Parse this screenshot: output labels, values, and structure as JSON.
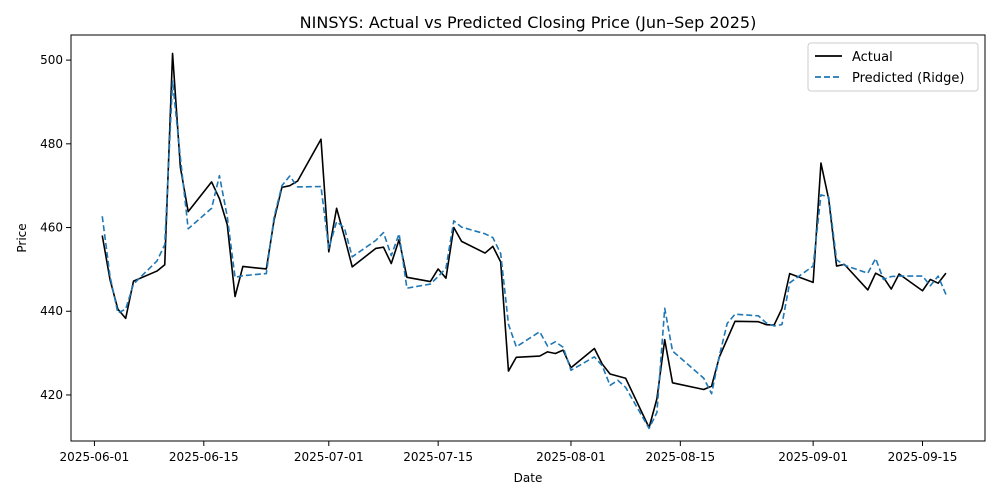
{
  "chart_data": {
    "type": "line",
    "title": "NINSYS: Actual vs Predicted Closing Price (Jun–Sep 2025)",
    "xlabel": "Date",
    "ylabel": "Price",
    "x_axis": "date",
    "xlim": [
      "2025-05-29",
      "2025-09-23"
    ],
    "ylim": [
      409,
      506
    ],
    "yticks": [
      420,
      440,
      460,
      480,
      500
    ],
    "xticks": [
      "2025-06-01",
      "2025-06-15",
      "2025-07-01",
      "2025-07-15",
      "2025-08-01",
      "2025-08-15",
      "2025-09-01",
      "2025-09-15"
    ],
    "grid": false,
    "legend_position": "top-right",
    "series": [
      {
        "name": "Actual",
        "color": "#000000",
        "style": "solid",
        "points": [
          [
            "2025-06-02",
            458.1
          ],
          [
            "2025-06-03",
            447.5
          ],
          [
            "2025-06-04",
            440.5
          ],
          [
            "2025-06-05",
            438.3
          ],
          [
            "2025-06-06",
            447.2
          ],
          [
            "2025-06-09",
            449.6
          ],
          [
            "2025-06-10",
            451.1
          ],
          [
            "2025-06-11",
            501.6
          ],
          [
            "2025-06-12",
            474.4
          ],
          [
            "2025-06-13",
            463.8
          ],
          [
            "2025-06-16",
            470.9
          ],
          [
            "2025-06-17",
            466.9
          ],
          [
            "2025-06-18",
            460.7
          ],
          [
            "2025-06-19",
            443.5
          ],
          [
            "2025-06-20",
            450.7
          ],
          [
            "2025-06-23",
            450.1
          ],
          [
            "2025-06-24",
            461.8
          ],
          [
            "2025-06-25",
            469.6
          ],
          [
            "2025-06-26",
            470.0
          ],
          [
            "2025-06-27",
            471.1
          ],
          [
            "2025-06-30",
            481.1
          ],
          [
            "2025-07-01",
            454.2
          ],
          [
            "2025-07-02",
            464.6
          ],
          [
            "2025-07-03",
            457.8
          ],
          [
            "2025-07-04",
            450.6
          ],
          [
            "2025-07-07",
            455.0
          ],
          [
            "2025-07-08",
            455.3
          ],
          [
            "2025-07-09",
            451.4
          ],
          [
            "2025-07-10",
            457.1
          ],
          [
            "2025-07-11",
            448.1
          ],
          [
            "2025-07-14",
            447.1
          ],
          [
            "2025-07-15",
            450.1
          ],
          [
            "2025-07-16",
            447.9
          ],
          [
            "2025-07-17",
            460.0
          ],
          [
            "2025-07-18",
            456.7
          ],
          [
            "2025-07-21",
            453.9
          ],
          [
            "2025-07-22",
            455.5
          ],
          [
            "2025-07-23",
            451.8
          ],
          [
            "2025-07-24",
            425.7
          ],
          [
            "2025-07-25",
            429.0
          ],
          [
            "2025-07-28",
            429.3
          ],
          [
            "2025-07-29",
            430.3
          ],
          [
            "2025-07-30",
            429.9
          ],
          [
            "2025-07-31",
            430.7
          ],
          [
            "2025-08-01",
            426.5
          ],
          [
            "2025-08-04",
            431.1
          ],
          [
            "2025-08-05",
            427.4
          ],
          [
            "2025-08-06",
            425.0
          ],
          [
            "2025-08-08",
            424.0
          ],
          [
            "2025-08-11",
            412.2
          ],
          [
            "2025-08-12",
            419.1
          ],
          [
            "2025-08-13",
            433.2
          ],
          [
            "2025-08-14",
            422.9
          ],
          [
            "2025-08-18",
            421.3
          ],
          [
            "2025-08-19",
            422.1
          ],
          [
            "2025-08-20",
            429.1
          ],
          [
            "2025-08-22",
            437.6
          ],
          [
            "2025-08-25",
            437.5
          ],
          [
            "2025-08-26",
            436.8
          ],
          [
            "2025-08-27",
            436.7
          ],
          [
            "2025-08-28",
            440.6
          ],
          [
            "2025-08-29",
            449.0
          ],
          [
            "2025-09-01",
            446.9
          ],
          [
            "2025-09-02",
            475.4
          ],
          [
            "2025-09-03",
            466.7
          ],
          [
            "2025-09-04",
            450.8
          ],
          [
            "2025-09-05",
            451.2
          ],
          [
            "2025-09-08",
            445.1
          ],
          [
            "2025-09-09",
            449.1
          ],
          [
            "2025-09-10",
            448.1
          ],
          [
            "2025-09-11",
            445.3
          ],
          [
            "2025-09-12",
            448.9
          ],
          [
            "2025-09-15",
            444.9
          ],
          [
            "2025-09-16",
            447.6
          ],
          [
            "2025-09-17",
            446.7
          ],
          [
            "2025-09-18",
            449.1
          ]
        ]
      },
      {
        "name": "Predicted (Ridge)",
        "color": "#1f77b4",
        "style": "dashed",
        "points": [
          [
            "2025-06-02",
            462.7
          ],
          [
            "2025-06-03",
            448.3
          ],
          [
            "2025-06-04",
            439.6
          ],
          [
            "2025-06-05",
            440.5
          ],
          [
            "2025-06-06",
            446.5
          ],
          [
            "2025-06-09",
            452.0
          ],
          [
            "2025-06-10",
            455.9
          ],
          [
            "2025-06-11",
            495.0
          ],
          [
            "2025-06-12",
            476.7
          ],
          [
            "2025-06-13",
            459.7
          ],
          [
            "2025-06-16",
            464.6
          ],
          [
            "2025-06-17",
            472.4
          ],
          [
            "2025-06-18",
            462.6
          ],
          [
            "2025-06-19",
            448.1
          ],
          [
            "2025-06-20",
            448.5
          ],
          [
            "2025-06-23",
            449.0
          ],
          [
            "2025-06-24",
            462.5
          ],
          [
            "2025-06-25",
            470.0
          ],
          [
            "2025-06-26",
            472.3
          ],
          [
            "2025-06-27",
            469.7
          ],
          [
            "2025-06-30",
            469.8
          ],
          [
            "2025-07-01",
            455.0
          ],
          [
            "2025-07-02",
            461.4
          ],
          [
            "2025-07-03",
            459.9
          ],
          [
            "2025-07-04",
            453.0
          ],
          [
            "2025-07-07",
            456.9
          ],
          [
            "2025-07-08",
            458.8
          ],
          [
            "2025-07-09",
            453.3
          ],
          [
            "2025-07-10",
            458.5
          ],
          [
            "2025-07-11",
            445.5
          ],
          [
            "2025-07-14",
            446.5
          ],
          [
            "2025-07-15",
            448.3
          ],
          [
            "2025-07-16",
            450.3
          ],
          [
            "2025-07-17",
            461.6
          ],
          [
            "2025-07-18",
            460.1
          ],
          [
            "2025-07-21",
            458.5
          ],
          [
            "2025-07-22",
            457.6
          ],
          [
            "2025-07-23",
            453.8
          ],
          [
            "2025-07-24",
            436.9
          ],
          [
            "2025-07-25",
            431.5
          ],
          [
            "2025-07-28",
            435.1
          ],
          [
            "2025-07-29",
            431.7
          ],
          [
            "2025-07-30",
            432.7
          ],
          [
            "2025-07-31",
            431.4
          ],
          [
            "2025-08-01",
            425.9
          ],
          [
            "2025-08-04",
            429.1
          ],
          [
            "2025-08-05",
            427.0
          ],
          [
            "2025-08-06",
            422.3
          ],
          [
            "2025-08-07",
            423.5
          ],
          [
            "2025-08-08",
            421.8
          ],
          [
            "2025-08-11",
            412.0
          ],
          [
            "2025-08-12",
            415.8
          ],
          [
            "2025-08-13",
            440.7
          ],
          [
            "2025-08-14",
            430.5
          ],
          [
            "2025-08-18",
            424.0
          ],
          [
            "2025-08-19",
            420.3
          ],
          [
            "2025-08-20",
            429.4
          ],
          [
            "2025-08-21",
            437.1
          ],
          [
            "2025-08-22",
            439.3
          ],
          [
            "2025-08-25",
            438.9
          ],
          [
            "2025-08-26",
            437.2
          ],
          [
            "2025-08-27",
            436.5
          ],
          [
            "2025-08-28",
            436.8
          ],
          [
            "2025-08-29",
            446.8
          ],
          [
            "2025-09-01",
            450.8
          ],
          [
            "2025-09-02",
            467.8
          ],
          [
            "2025-09-03",
            467.3
          ],
          [
            "2025-09-04",
            452.3
          ],
          [
            "2025-09-05",
            451.0
          ],
          [
            "2025-09-08",
            449.1
          ],
          [
            "2025-09-09",
            452.6
          ],
          [
            "2025-09-10",
            447.6
          ],
          [
            "2025-09-11",
            448.3
          ],
          [
            "2025-09-12",
            448.4
          ],
          [
            "2025-09-15",
            448.4
          ],
          [
            "2025-09-16",
            446.1
          ],
          [
            "2025-09-17",
            448.4
          ],
          [
            "2025-09-18",
            444.0
          ]
        ]
      }
    ]
  }
}
